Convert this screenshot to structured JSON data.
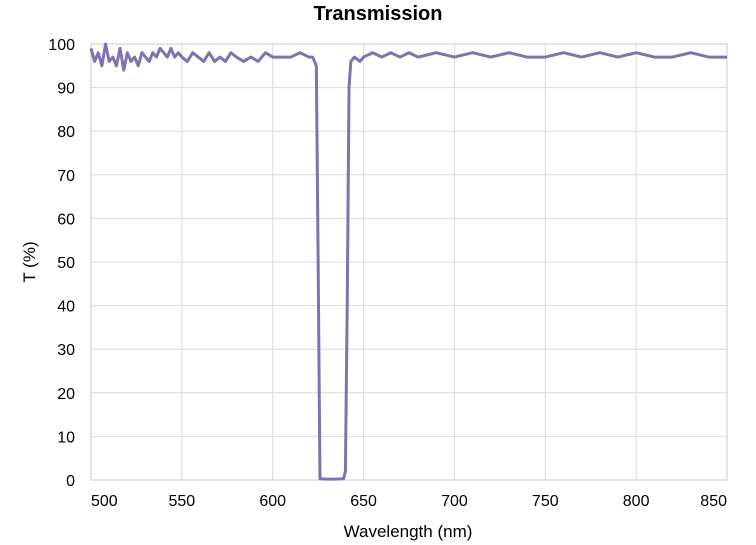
{
  "chart_data": {
    "type": "line",
    "title": "Transmission",
    "xlabel": "Wavelength (nm)",
    "ylabel": "T (%)",
    "xlim": [
      500,
      850
    ],
    "ylim": [
      0,
      100
    ],
    "xticks": [
      500,
      550,
      600,
      650,
      700,
      750,
      800,
      850
    ],
    "yticks": [
      0,
      10,
      20,
      30,
      40,
      50,
      60,
      70,
      80,
      90,
      100
    ],
    "grid": true,
    "line_color": "#8072b0",
    "series": [
      {
        "x": [
          500,
          502,
          504,
          506,
          508,
          510,
          512,
          514,
          516,
          518,
          520,
          522,
          524,
          526,
          528,
          530,
          532,
          534,
          536,
          538,
          540,
          542,
          544,
          546,
          548,
          550,
          553,
          556,
          559,
          562,
          565,
          568,
          571,
          574,
          577,
          580,
          584,
          588,
          592,
          596,
          600,
          605,
          610,
          615,
          620,
          622,
          623,
          624,
          625,
          626,
          630,
          635,
          639,
          640,
          641,
          642,
          643,
          645,
          648,
          650,
          655,
          660,
          665,
          670,
          675,
          680,
          690,
          700,
          710,
          720,
          730,
          740,
          750,
          760,
          770,
          780,
          790,
          800,
          810,
          820,
          830,
          840,
          850
        ],
        "values": [
          99,
          96,
          98,
          95,
          100,
          96,
          97,
          95,
          99,
          94,
          98,
          96,
          97,
          95,
          98,
          97,
          96,
          98,
          97,
          99,
          98,
          97,
          99,
          97,
          98,
          97,
          96,
          98,
          97,
          96,
          98,
          96,
          97,
          96,
          98,
          97,
          96,
          97,
          96,
          98,
          97,
          97,
          97,
          98,
          97,
          97,
          96,
          95,
          50,
          0.3,
          0.2,
          0.2,
          0.3,
          2,
          40,
          90,
          96,
          97,
          96,
          97,
          98,
          97,
          98,
          97,
          98,
          97,
          98,
          97,
          98,
          97,
          98,
          97,
          97,
          98,
          97,
          98,
          97,
          98,
          97,
          97,
          98,
          97,
          97
        ]
      }
    ]
  }
}
